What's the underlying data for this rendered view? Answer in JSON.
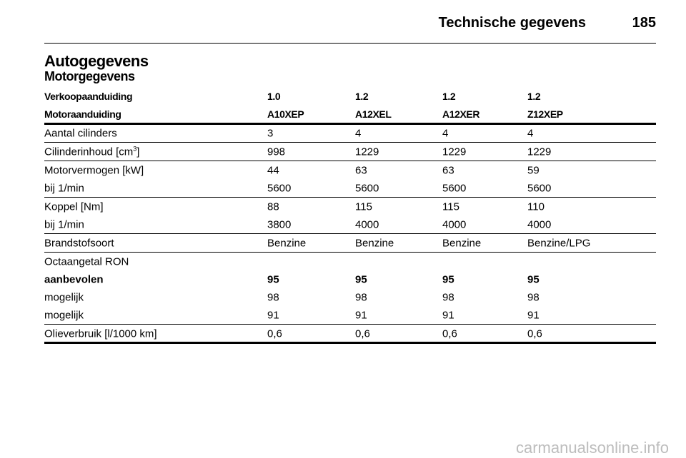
{
  "header": {
    "title": "Technische gegevens",
    "page": "185"
  },
  "section": {
    "title": "Autogegevens",
    "subtitle": "Motorgegevens"
  },
  "table": {
    "header": [
      [
        "Verkoopaanduiding",
        "1.0",
        "1.2",
        "1.2",
        "1.2"
      ],
      [
        "Motoraanduiding",
        "A10XEP",
        "A12XEL",
        "A12XER",
        "Z12XEP"
      ]
    ],
    "groups": [
      {
        "rows": [
          {
            "cells": [
              "Aantal cilinders",
              "3",
              "4",
              "4",
              "4"
            ]
          }
        ]
      },
      {
        "rows": [
          {
            "cells": [
              {
                "text": "Cilinderinhoud [cm",
                "sup": "3",
                "tail": "]"
              },
              "998",
              "1229",
              "1229",
              "1229"
            ]
          }
        ]
      },
      {
        "rows": [
          {
            "cells": [
              "Motorvermogen [kW]",
              "44",
              "63",
              "63",
              "59"
            ]
          },
          {
            "cells": [
              "bij 1/min",
              "5600",
              "5600",
              "5600",
              "5600"
            ]
          }
        ]
      },
      {
        "rows": [
          {
            "cells": [
              "Koppel [Nm]",
              "88",
              "115",
              "115",
              "110"
            ]
          },
          {
            "cells": [
              "bij 1/min",
              "3800",
              "4000",
              "4000",
              "4000"
            ]
          }
        ]
      },
      {
        "rows": [
          {
            "cells": [
              "Brandstofsoort",
              "Benzine",
              "Benzine",
              "Benzine",
              "Benzine/LPG"
            ]
          }
        ]
      },
      {
        "rows": [
          {
            "cells": [
              "Octaangetal RON"
            ]
          },
          {
            "cells": [
              "aanbevolen",
              "95",
              "95",
              "95",
              "95"
            ],
            "bold": true
          },
          {
            "cells": [
              "mogelijk",
              "98",
              "98",
              "98",
              "98"
            ]
          },
          {
            "cells": [
              "mogelijk",
              "91",
              "91",
              "91",
              "91"
            ]
          }
        ]
      },
      {
        "rows": [
          {
            "cells": [
              "Olieverbruik [l/1000 km]",
              "0,6",
              "0,6",
              "0,6",
              "0,6"
            ]
          }
        ]
      }
    ]
  },
  "watermark": "carmanualsonline.info"
}
